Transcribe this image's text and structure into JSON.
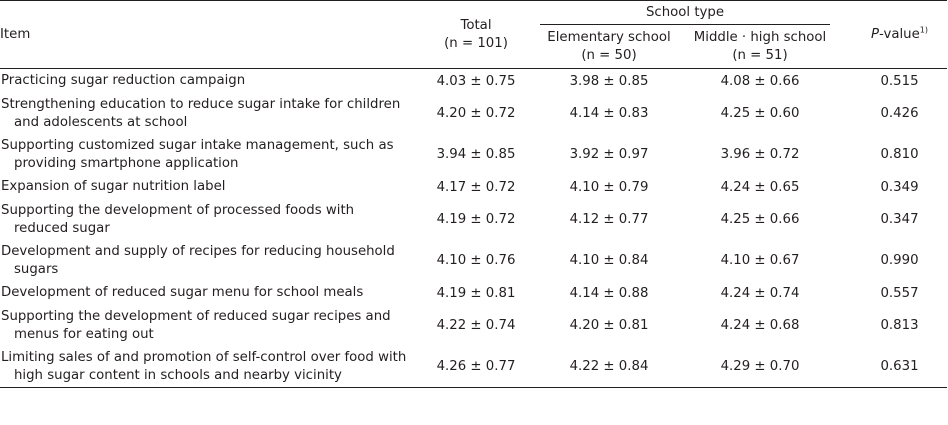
{
  "headers": {
    "item": "Item",
    "total_label": "Total",
    "total_n": "(n = 101)",
    "group_label": "School type",
    "elementary_label": "Elementary school",
    "elementary_n": "(n = 50)",
    "middle_label": "Middle · high school",
    "middle_n": "(n = 51)",
    "pvalue_italic": "P",
    "pvalue_rest": "-value",
    "pvalue_sup": "1)"
  },
  "rows": [
    {
      "item_line1": "Practicing sugar reduction campaign",
      "item_line2": "",
      "total": "4.03 ± 0.75",
      "elementary": "3.98 ± 0.85",
      "middle": "4.08 ± 0.66",
      "p": "0.515"
    },
    {
      "item_line1": "Strengthening education to reduce sugar intake for children",
      "item_line2": "and adolescents at school",
      "total": "4.20 ± 0.72",
      "elementary": "4.14 ± 0.83",
      "middle": "4.25 ± 0.60",
      "p": "0.426"
    },
    {
      "item_line1": "Supporting customized sugar intake management, such as",
      "item_line2": "providing smartphone application",
      "total": "3.94 ± 0.85",
      "elementary": "3.92 ± 0.97",
      "middle": "3.96 ± 0.72",
      "p": "0.810"
    },
    {
      "item_line1": "Expansion of sugar nutrition label",
      "item_line2": "",
      "total": "4.17 ± 0.72",
      "elementary": "4.10 ± 0.79",
      "middle": "4.24 ± 0.65",
      "p": "0.349"
    },
    {
      "item_line1": "Supporting the development of processed foods with",
      "item_line2": "reduced sugar",
      "total": "4.19 ± 0.72",
      "elementary": "4.12 ± 0.77",
      "middle": "4.25 ± 0.66",
      "p": "0.347"
    },
    {
      "item_line1": "Development and supply of recipes for reducing household",
      "item_line2": "sugars",
      "total": "4.10 ± 0.76",
      "elementary": "4.10 ± 0.84",
      "middle": "4.10 ± 0.67",
      "p": "0.990"
    },
    {
      "item_line1": "Development of reduced sugar menu for school meals",
      "item_line2": "",
      "total": "4.19 ± 0.81",
      "elementary": "4.14 ± 0.88",
      "middle": "4.24 ± 0.74",
      "p": "0.557"
    },
    {
      "item_line1": "Supporting the development of reduced sugar recipes and",
      "item_line2": "menus for eating out",
      "total": "4.22 ± 0.74",
      "elementary": "4.20 ± 0.81",
      "middle": "4.24 ± 0.68",
      "p": "0.813"
    },
    {
      "item_line1": "Limiting sales of and promotion of self-control over food with",
      "item_line2": "high sugar content in schools and nearby vicinity",
      "total": "4.26 ± 0.77",
      "elementary": "4.22 ± 0.84",
      "middle": "4.29 ± 0.70",
      "p": "0.631"
    }
  ]
}
